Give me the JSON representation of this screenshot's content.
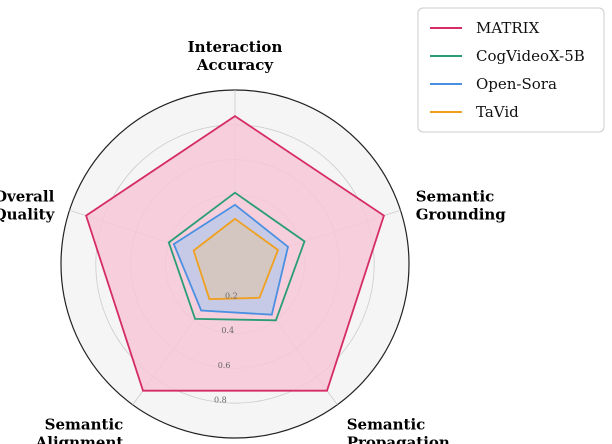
{
  "chart_data": {
    "type": "radar",
    "axes": [
      [
        "Interaction",
        "Accuracy"
      ],
      [
        "Semantic",
        "Grounding"
      ],
      [
        "Semantic",
        "Propagation"
      ],
      [
        "Semantic",
        "Alignment"
      ],
      [
        "Overall",
        "Quality"
      ]
    ],
    "rlim": [
      0,
      1
    ],
    "ticks": [
      0.2,
      0.4,
      0.6,
      0.8
    ],
    "tick_labels": [
      "0.2",
      "0.4",
      "0.6",
      "0.8"
    ],
    "grid": true,
    "legend_position": "top-right",
    "series": [
      {
        "name": "MATRIX",
        "color": "#d62c66",
        "fill": "#f7c7d7",
        "values": [
          0.85,
          0.9,
          0.9,
          0.9,
          0.9
        ]
      },
      {
        "name": "CogVideoX-5B",
        "color": "#2a9d78",
        "fill": "none",
        "values": [
          0.41,
          0.42,
          0.4,
          0.39,
          0.4
        ]
      },
      {
        "name": "Open-Sora",
        "color": "#4a90e2",
        "fill": "#b7c8eb",
        "values": [
          0.34,
          0.32,
          0.36,
          0.33,
          0.37
        ]
      },
      {
        "name": "TaVid",
        "color": "#f0a020",
        "fill": "#d8c6b4",
        "values": [
          0.26,
          0.26,
          0.24,
          0.25,
          0.25
        ]
      }
    ]
  }
}
